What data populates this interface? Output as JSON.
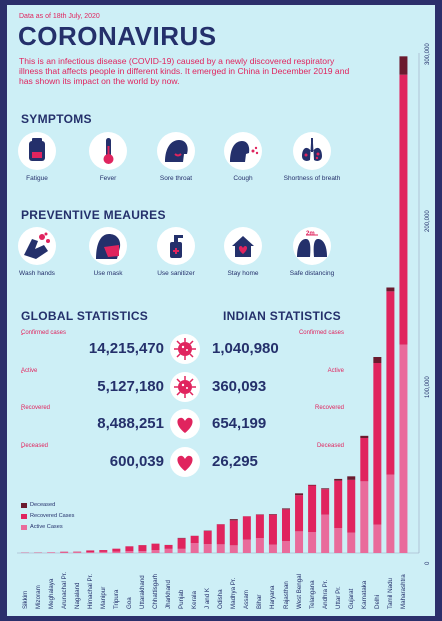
{
  "header": {
    "date": "Data as of 18th July, 2020",
    "title": "CORONAVIRUS",
    "description": "This is an infectious disease (COVID-19) caused by a newly discovered respiratory illness that affects people in different kinds. It emerged in China in December 2019 and has shown its impact on the world by now."
  },
  "symptoms": {
    "heading": "SYMPTOMS",
    "items": [
      {
        "label": "Fatigue",
        "icon": "fatigue-icon"
      },
      {
        "label": "Fever",
        "icon": "thermometer-icon"
      },
      {
        "label": "Sore throat",
        "icon": "sore-throat-icon"
      },
      {
        "label": "Cough",
        "icon": "cough-icon"
      },
      {
        "label": "Shortness of breath",
        "icon": "lungs-icon"
      }
    ]
  },
  "prevention": {
    "heading": "PREVENTIVE MEAURES",
    "items": [
      {
        "label": "Wash hands",
        "icon": "wash-hands-icon"
      },
      {
        "label": "Use mask",
        "icon": "mask-icon"
      },
      {
        "label": "Use sanitizer",
        "icon": "sanitizer-icon"
      },
      {
        "label": "Stay home",
        "icon": "home-icon"
      },
      {
        "label": "Safe distancing",
        "icon": "distancing-icon",
        "badge": "2m"
      }
    ]
  },
  "stats": {
    "global_heading": "GLOBAL STATISTICS",
    "indian_heading": "INDIAN STATISTICS",
    "rows": [
      {
        "label": "Confirmed cases",
        "global": "14,215,470",
        "india": "1,040,980",
        "icon": "virus-icon"
      },
      {
        "label": "Active",
        "global": "5,127,180",
        "india": "360,093",
        "icon": "virus-icon"
      },
      {
        "label": "Recovered",
        "global": "8,488,251",
        "india": "654,199",
        "icon": "heart-icon"
      },
      {
        "label": "Deceased",
        "global": "600,039",
        "india": "26,295",
        "icon": "heart-icon"
      }
    ]
  },
  "colors": {
    "navy": "#24306b",
    "pink": "#e0245e",
    "active": "#e96b9b",
    "recovered": "#e0245e",
    "deceased": "#6b1a2e",
    "background": "#cdeff6"
  },
  "chart_data": {
    "type": "bar",
    "stacked": true,
    "orientation": "vertical",
    "categories": [
      "Sikkim",
      "Mizoram",
      "Meghalaya",
      "Arunachal Pr.",
      "Nagaland",
      "Himachal Pr.",
      "Manipur",
      "Tripura",
      "Goa",
      "Uttarakhand",
      "Chhattisgarh",
      "Jharkhand",
      "Punjab",
      "Kerala",
      "J and K",
      "Odisha",
      "Madhya Pr.",
      "Assam",
      "Bihar",
      "Haryana",
      "Rajasthan",
      "West Bengal",
      "Telangana",
      "Andhra Pr.",
      "Uttar Pr.",
      "Gujarat",
      "Karnataka",
      "Delhi",
      "Tamil Nadu",
      "Maharashtra"
    ],
    "series": [
      {
        "name": "Active Cases",
        "values": [
          150,
          130,
          350,
          390,
          500,
          430,
          660,
          900,
          1200,
          1200,
          1800,
          2500,
          2500,
          6000,
          5300,
          5200,
          4600,
          8000,
          9000,
          5000,
          7100,
          13000,
          12600,
          23000,
          14900,
          12200,
          43000,
          17000,
          47000,
          125000
        ]
      },
      {
        "name": "Recovered Cases",
        "values": [
          100,
          150,
          50,
          370,
          300,
          1100,
          1100,
          1700,
          2800,
          3500,
          3800,
          2300,
          6300,
          4300,
          7900,
          12000,
          15000,
          14000,
          14000,
          18000,
          19100,
          21700,
          27900,
          15300,
          28500,
          31700,
          26000,
          97000,
          110000,
          162000
        ]
      },
      {
        "name": "Deceased",
        "values": [
          0,
          0,
          2,
          2,
          0,
          11,
          0,
          1,
          20,
          50,
          21,
          40,
          260,
          40,
          230,
          80,
          710,
          48,
          200,
          350,
          550,
          1100,
          400,
          500,
          1050,
          2100,
          1300,
          3600,
          2300,
          11000
        ]
      }
    ],
    "y_ticks": [
      "0",
      "100,000",
      "200,000",
      "300,000"
    ],
    "ylim": [
      0,
      300000
    ],
    "legend": [
      "Deceased",
      "Recovered Cases",
      "Active Cases"
    ],
    "legend_position": "bottom-left"
  }
}
